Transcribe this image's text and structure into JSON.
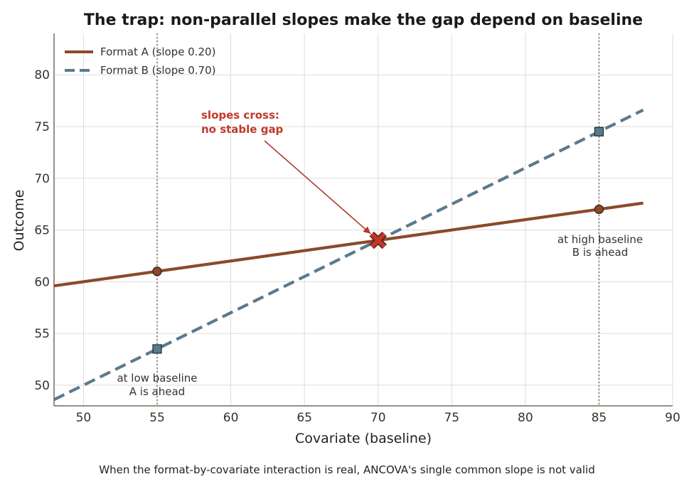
{
  "chart_data": {
    "type": "line",
    "title": "The trap: non-parallel slopes make the gap depend on baseline",
    "xlabel": "Covariate (baseline)",
    "ylabel": "Outcome",
    "xlim": [
      48,
      90
    ],
    "ylim": [
      48,
      84
    ],
    "xticks": [
      50,
      55,
      60,
      65,
      70,
      75,
      80,
      85,
      90
    ],
    "yticks": [
      50,
      55,
      60,
      65,
      70,
      75,
      80
    ],
    "grid": true,
    "legend_position": "top-left",
    "series": [
      {
        "name": "Format A (slope 0.20)",
        "style": "solid",
        "color": "#8b4a2b",
        "line": {
          "x": [
            48,
            88
          ],
          "y": [
            59.6,
            67.6
          ]
        },
        "markers": {
          "shape": "circle",
          "x": [
            55,
            85
          ],
          "y": [
            61.0,
            67.0
          ]
        }
      },
      {
        "name": "Format B (slope 0.70)",
        "style": "dashed",
        "color": "#5a7a8c",
        "line": {
          "x": [
            48,
            88
          ],
          "y": [
            48.6,
            76.6
          ]
        },
        "markers": {
          "shape": "square",
          "x": [
            55,
            85
          ],
          "y": [
            53.5,
            74.5
          ]
        }
      }
    ],
    "reference_lines": [
      {
        "x": 55,
        "style": "dotted",
        "color": "#8b7060"
      },
      {
        "x": 85,
        "style": "dotted",
        "color": "#8b7060"
      }
    ],
    "crossing_point": {
      "x": 70,
      "y": 64,
      "marker": "X",
      "color": "#c0392b"
    },
    "annotations": [
      {
        "lines": [
          "slopes cross:",
          "no stable gap"
        ],
        "role": "callout",
        "arrow_to": {
          "x": 70,
          "y": 64
        }
      },
      {
        "lines": [
          "at low baseline",
          "A is ahead"
        ],
        "near_x": 55
      },
      {
        "lines": [
          "at high baseline",
          "B is ahead"
        ],
        "near_x": 85
      }
    ],
    "caption": "When the format-by-covariate interaction is real, ANCOVA's single common slope is not valid"
  }
}
